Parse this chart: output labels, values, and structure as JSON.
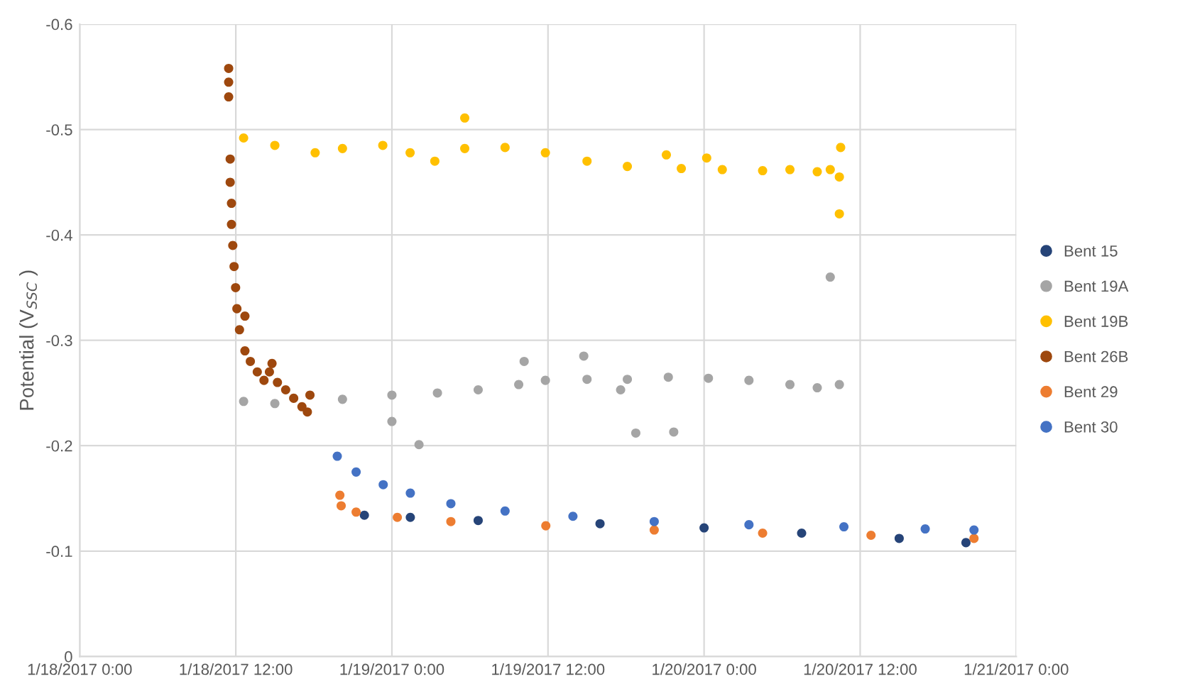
{
  "chart_data": {
    "type": "scatter",
    "ylabel": "Potential (V$_{SSC}$ )",
    "xlim": [
      "2017-01-18T00:00",
      "2017-01-21T00:00"
    ],
    "xticks": [
      {
        "value": "2017-01-18T00:00",
        "label": "1/18/2017 0:00"
      },
      {
        "value": "2017-01-18T12:00",
        "label": "1/18/2017 12:00"
      },
      {
        "value": "2017-01-19T00:00",
        "label": "1/19/2017 0:00"
      },
      {
        "value": "2017-01-19T12:00",
        "label": "1/19/2017 12:00"
      },
      {
        "value": "2017-01-20T00:00",
        "label": "1/20/2017 0:00"
      },
      {
        "value": "2017-01-20T12:00",
        "label": "1/20/2017 12:00"
      },
      {
        "value": "2017-01-21T00:00",
        "label": "1/21/2017 0:00"
      }
    ],
    "ylim": [
      0,
      -0.6
    ],
    "yticks": [
      0,
      -0.1,
      -0.2,
      -0.3,
      -0.4,
      -0.5,
      -0.6
    ],
    "grid": true,
    "legend": "right",
    "marker": "circle",
    "series": [
      {
        "name": "Bent 15",
        "color": "#264478",
        "x": [
          "2017-01-18T21:53",
          "2017-01-19T01:25",
          "2017-01-19T06:38",
          "2017-01-19T16:00",
          "2017-01-20T00:00",
          "2017-01-20T07:30",
          "2017-01-20T15:00",
          "2017-01-20T20:08"
        ],
        "values": [
          -0.134,
          -0.132,
          -0.129,
          -0.126,
          -0.122,
          -0.117,
          -0.112,
          -0.108
        ]
      },
      {
        "name": "Bent 19A",
        "color": "#a5a5a5",
        "x": [
          "2017-01-18T12:36",
          "2017-01-18T15:00",
          "2017-01-18T20:12",
          "2017-01-19T00:00",
          "2017-01-19T03:30",
          "2017-01-19T06:38",
          "2017-01-19T09:45",
          "2017-01-19T11:48",
          "2017-01-19T15:00",
          "2017-01-19T18:06",
          "2017-01-19T21:15",
          "2017-01-20T00:20",
          "2017-01-20T03:27",
          "2017-01-20T06:36",
          "2017-01-20T08:42",
          "2017-01-20T10:24",
          "2017-01-19T00:00",
          "2017-01-19T02:05",
          "2017-01-19T10:10",
          "2017-01-19T14:45",
          "2017-01-19T17:35",
          "2017-01-19T18:45",
          "2017-01-19T21:40",
          "2017-01-20T09:42"
        ],
        "values": [
          -0.242,
          -0.24,
          -0.244,
          -0.248,
          -0.25,
          -0.253,
          -0.258,
          -0.262,
          -0.263,
          -0.263,
          -0.265,
          -0.264,
          -0.262,
          -0.258,
          -0.255,
          -0.258,
          -0.223,
          -0.201,
          -0.28,
          -0.285,
          -0.253,
          -0.212,
          -0.213,
          -0.36
        ]
      },
      {
        "name": "Bent 19B",
        "color": "#ffc000",
        "x": [
          "2017-01-18T12:36",
          "2017-01-18T15:00",
          "2017-01-18T18:06",
          "2017-01-18T20:12",
          "2017-01-18T23:18",
          "2017-01-19T01:24",
          "2017-01-19T03:18",
          "2017-01-19T05:36",
          "2017-01-19T08:42",
          "2017-01-19T11:48",
          "2017-01-19T15:00",
          "2017-01-19T18:06",
          "2017-01-19T22:15",
          "2017-01-20T01:24",
          "2017-01-20T04:30",
          "2017-01-20T06:36",
          "2017-01-20T08:42",
          "2017-01-20T09:42",
          "2017-01-20T10:24",
          "2017-01-19T05:36",
          "2017-01-19T21:06",
          "2017-01-20T00:12",
          "2017-01-20T10:30",
          "2017-01-20T10:24"
        ],
        "values": [
          -0.492,
          -0.485,
          -0.478,
          -0.482,
          -0.485,
          -0.478,
          -0.47,
          -0.482,
          -0.483,
          -0.478,
          -0.47,
          -0.465,
          -0.463,
          -0.462,
          -0.461,
          -0.462,
          -0.46,
          -0.462,
          -0.455,
          -0.511,
          -0.476,
          -0.473,
          -0.483,
          -0.42
        ]
      },
      {
        "name": "Bent 26B",
        "color": "#9e480e",
        "x": [
          "2017-01-18T11:27",
          "2017-01-18T11:27",
          "2017-01-18T11:27",
          "2017-01-18T11:34",
          "2017-01-18T11:34",
          "2017-01-18T11:40",
          "2017-01-18T11:40",
          "2017-01-18T11:46",
          "2017-01-18T11:52",
          "2017-01-18T11:59",
          "2017-01-18T12:05",
          "2017-01-18T12:17",
          "2017-01-18T12:42",
          "2017-01-18T12:42",
          "2017-01-18T13:07",
          "2017-01-18T13:39",
          "2017-01-18T14:10",
          "2017-01-18T14:35",
          "2017-01-18T14:47",
          "2017-01-18T15:12",
          "2017-01-18T15:50",
          "2017-01-18T16:27",
          "2017-01-18T17:05",
          "2017-01-18T17:30",
          "2017-01-18T17:42"
        ],
        "values": [
          -0.558,
          -0.545,
          -0.531,
          -0.472,
          -0.45,
          -0.43,
          -0.41,
          -0.39,
          -0.37,
          -0.35,
          -0.33,
          -0.31,
          -0.323,
          -0.29,
          -0.28,
          -0.27,
          -0.262,
          -0.27,
          -0.278,
          -0.26,
          -0.253,
          -0.245,
          -0.237,
          -0.232,
          -0.248
        ]
      },
      {
        "name": "Bent 29",
        "color": "#ed7d31",
        "x": [
          "2017-01-18T20:00",
          "2017-01-18T20:06",
          "2017-01-18T21:15",
          "2017-01-19T00:25",
          "2017-01-19T04:32",
          "2017-01-19T11:50",
          "2017-01-19T20:10",
          "2017-01-20T04:30",
          "2017-01-20T12:50",
          "2017-01-20T20:45"
        ],
        "values": [
          -0.153,
          -0.143,
          -0.137,
          -0.132,
          -0.128,
          -0.124,
          -0.12,
          -0.117,
          -0.115,
          -0.112
        ]
      },
      {
        "name": "Bent 30",
        "color": "#4472c4",
        "x": [
          "2017-01-18T19:48",
          "2017-01-18T21:15",
          "2017-01-18T23:20",
          "2017-01-19T01:25",
          "2017-01-19T04:32",
          "2017-01-19T08:42",
          "2017-01-19T13:55",
          "2017-01-19T20:10",
          "2017-01-20T03:27",
          "2017-01-20T10:45",
          "2017-01-20T17:00",
          "2017-01-20T20:45"
        ],
        "values": [
          -0.19,
          -0.175,
          -0.163,
          -0.155,
          -0.145,
          -0.138,
          -0.133,
          -0.128,
          -0.125,
          -0.123,
          -0.121,
          -0.12
        ]
      }
    ]
  }
}
